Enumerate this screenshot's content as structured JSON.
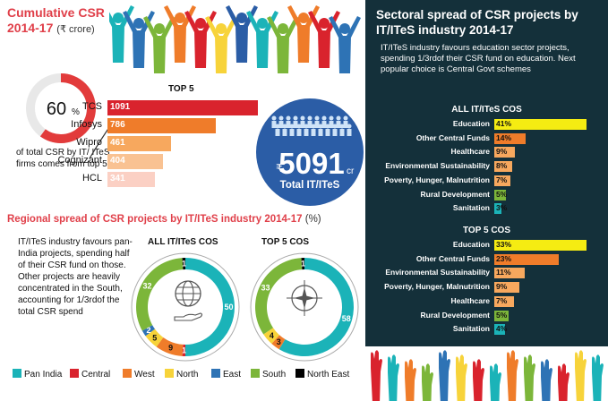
{
  "left": {
    "title": "Cumulative CSR",
    "period": "2014-17",
    "unit": "(₹ crore)",
    "pct_value": "60",
    "pct_sign": "%",
    "pct_caption": "of total CSR by IT/ ITeS firms comes from top 5",
    "total_symbol": "₹",
    "total_value": "5091",
    "total_unit": "cr",
    "total_label": "Total IT/ITeS"
  },
  "regional": {
    "title": "Regional spread of CSR projects by IT/ITeS industry 2014-17",
    "unit": "(%)",
    "desc": "IT/ITeS industry favours pan-India projects, spending half of their CSR fund on those. Other projects are heavily concentrated in the South, accounting for 1/3rdof the total CSR spend"
  },
  "right": {
    "title": "Sectoral spread of CSR projects by IT/ITeS industry 2014-17",
    "desc": "IT/ITeS industry favours education sector projects, spending 1/3rdof their CSR fund on education. Next popular choice is Central Govt schemes"
  },
  "colors": {
    "red": "#d9232d",
    "orange": "#ef7c2a",
    "lightorange": "#f7a85e",
    "peach": "#f9c292",
    "pink": "#fbd0c4",
    "teal": "#1bb3b8",
    "blue": "#2e73b5",
    "darkblue": "#2b5da6",
    "yellow": "#f7d33a",
    "green": "#7cb63a",
    "black": "#000000",
    "panel": "#14303a",
    "yellowbar": "#f5ec12"
  },
  "chart_data": [
    {
      "type": "bar",
      "title": "TOP 5",
      "categories": [
        "TCS",
        "Infosys",
        "Wipro",
        "Cognizant",
        "HCL"
      ],
      "values": [
        1091,
        786,
        461,
        404,
        341
      ]
    },
    {
      "type": "pie",
      "title": "ALL IT/ITeS COS",
      "categories": [
        "Pan India",
        "Central",
        "West",
        "North",
        "East",
        "South",
        "North East"
      ],
      "values": [
        50,
        1,
        9,
        5,
        2,
        32,
        1
      ],
      "labels": [
        "50",
        "1",
        "9",
        "5",
        "2",
        "32",
        "1"
      ]
    },
    {
      "type": "pie",
      "title": "TOP 5  COS",
      "categories": [
        "Pan India",
        "Central",
        "West",
        "North",
        "East",
        "South",
        "North East"
      ],
      "values": [
        58,
        0,
        3,
        4,
        0,
        33,
        1
      ],
      "labels": [
        "58",
        "",
        "3",
        "4",
        "",
        "33",
        "1"
      ]
    },
    {
      "type": "bar",
      "title": "ALL IT/ITeS COS",
      "categories": [
        "Education",
        "Other Central Funds",
        "Healthcare",
        "Environmental Sustainability",
        "Poverty, Hunger, Malnutrition",
        "Rural Development",
        "Sanitation"
      ],
      "values": [
        41,
        14,
        9,
        8,
        7,
        5,
        3
      ],
      "value_labels": [
        "41%",
        "14%",
        "9%",
        "8%",
        "7%",
        "5%",
        "3%"
      ]
    },
    {
      "type": "bar",
      "title": "TOP 5 COS",
      "categories": [
        "Education",
        "Other Central Funds",
        "Environmental Sustainability",
        "Poverty, Hunger, Malnutrition",
        "Healthcare",
        "Rural Development",
        "Sanitation"
      ],
      "values": [
        33,
        23,
        11,
        9,
        7,
        5,
        4
      ],
      "value_labels": [
        "33%",
        "23%",
        "11%",
        "9%",
        "7%",
        "5%",
        "4%"
      ]
    }
  ],
  "legend": [
    "Pan India",
    "Central",
    "West",
    "North",
    "East",
    "South",
    "North East"
  ]
}
